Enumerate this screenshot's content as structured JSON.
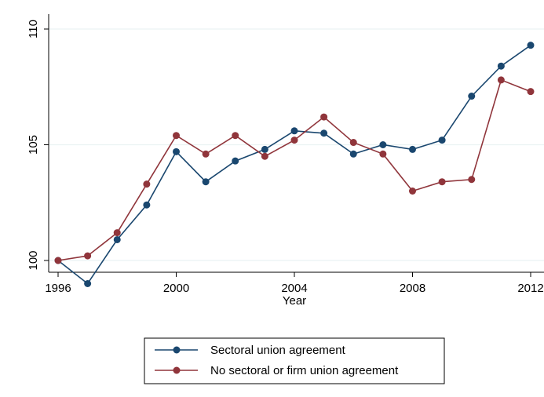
{
  "chart_data": {
    "type": "line",
    "xlabel": "Year",
    "ylabel": "",
    "xlim": [
      1996,
      2012
    ],
    "ylim": [
      98.9,
      110
    ],
    "x_ticks": [
      1996,
      2000,
      2004,
      2008,
      2012
    ],
    "y_ticks": [
      100,
      105,
      110
    ],
    "grid": "horizontal",
    "legend_position": "bottom",
    "x": [
      1996,
      1997,
      1998,
      1999,
      2000,
      2001,
      2002,
      2003,
      2004,
      2005,
      2006,
      2007,
      2008,
      2009,
      2010,
      2011,
      2012
    ],
    "series": [
      {
        "name": "Sectoral union agreement",
        "color": "#1a476f",
        "values": [
          100.0,
          99.0,
          100.9,
          102.4,
          104.7,
          103.4,
          104.3,
          104.8,
          105.6,
          105.5,
          104.6,
          105.0,
          104.8,
          105.2,
          107.1,
          108.4,
          109.3
        ]
      },
      {
        "name": "No sectoral or firm union agreement",
        "color": "#90353b",
        "values": [
          100.0,
          100.2,
          101.2,
          103.3,
          105.4,
          104.6,
          105.4,
          104.5,
          105.2,
          106.2,
          105.1,
          104.6,
          103.0,
          103.4,
          103.5,
          107.8,
          107.3
        ]
      }
    ]
  }
}
